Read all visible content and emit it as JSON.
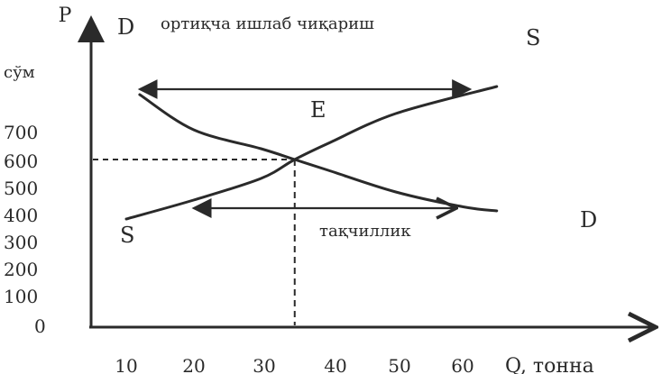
{
  "chart_data": {
    "type": "line",
    "title": "",
    "y_axis": {
      "label": "P",
      "unit": "сўм",
      "ticks": [
        "700",
        "600",
        "500",
        "400",
        "300",
        "200",
        "100",
        "0"
      ]
    },
    "x_axis": {
      "label": "Q, тонна",
      "ticks": [
        "10",
        "20",
        "30",
        "40",
        "50",
        "60"
      ]
    },
    "curves": {
      "demand": {
        "name": "D",
        "points": [
          [
            12,
            860
          ],
          [
            20,
            730
          ],
          [
            30,
            660
          ],
          [
            35,
            620
          ],
          [
            40,
            580
          ],
          [
            50,
            500
          ],
          [
            60,
            445
          ],
          [
            65,
            430
          ]
        ]
      },
      "supply": {
        "name": "S",
        "points": [
          [
            10,
            400
          ],
          [
            20,
            470
          ],
          [
            30,
            550
          ],
          [
            35,
            620
          ],
          [
            40,
            680
          ],
          [
            50,
            790
          ],
          [
            65,
            890
          ]
        ]
      }
    },
    "equilibrium": {
      "label": "E",
      "q": 35,
      "p": 620
    },
    "annotations": {
      "surplus": {
        "label": "ортиқча ишлаб чиқариш",
        "price": 880,
        "q_from": 12,
        "q_to": 61
      },
      "shortage": {
        "label": "тақчиллик",
        "price": 440,
        "q_from": 20,
        "q_to": 59
      }
    },
    "grid": false,
    "colors": {
      "ink": "#2a2a2a"
    }
  }
}
